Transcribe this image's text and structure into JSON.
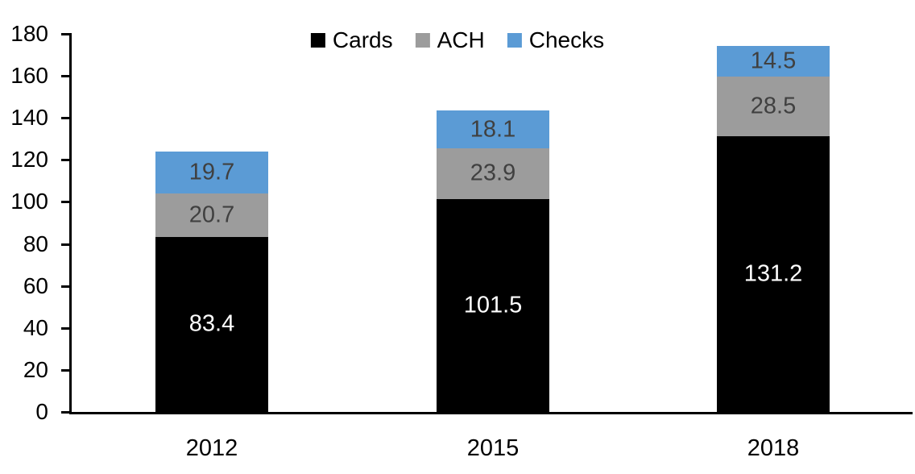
{
  "chart_data": {
    "type": "bar",
    "stacked": true,
    "categories": [
      "2012",
      "2015",
      "2018"
    ],
    "series": [
      {
        "name": "Cards",
        "color": "#000000",
        "label_color": "#ffffff",
        "values": [
          83.4,
          101.5,
          131.2
        ]
      },
      {
        "name": "ACH",
        "color": "#9C9C9C",
        "label_color": "#404040",
        "values": [
          20.7,
          23.9,
          28.5
        ]
      },
      {
        "name": "Checks",
        "color": "#5B9BD5",
        "label_color": "#404040",
        "values": [
          19.7,
          18.1,
          14.5
        ]
      }
    ],
    "title": "",
    "xlabel": "",
    "ylabel": "",
    "ylim": [
      0,
      180
    ],
    "yticks": [
      0,
      20,
      40,
      60,
      80,
      100,
      120,
      140,
      160,
      180
    ],
    "legend_position": "top",
    "grid": false,
    "axis_color": "#000000",
    "value_label_decimals": 1
  }
}
